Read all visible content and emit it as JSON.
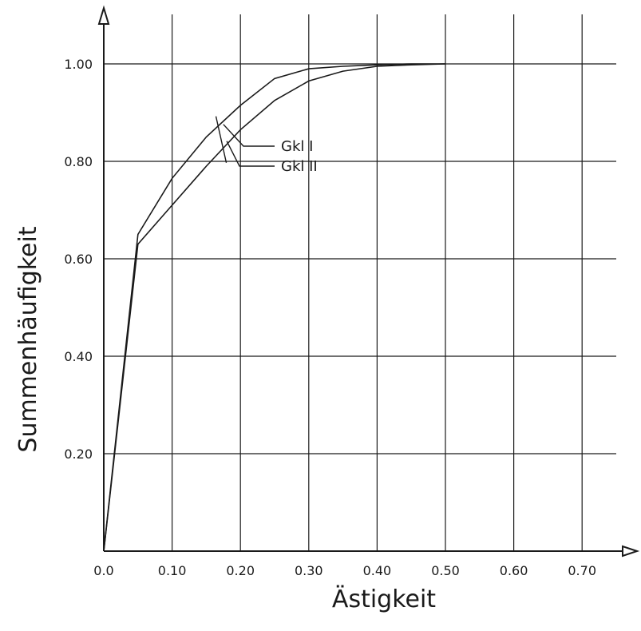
{
  "chart_data": {
    "type": "line",
    "title": "",
    "xlabel": "Ästigkeit",
    "ylabel": "Summenhäufigkeit",
    "xlim": [
      0,
      0.75
    ],
    "ylim": [
      0,
      1.0
    ],
    "grid": true,
    "x_ticks": [
      "0.0",
      "0.10",
      "0.20",
      "0.30",
      "0.40",
      "0.50",
      "0.60",
      "0.70"
    ],
    "y_ticks": [
      "0.20",
      "0.40",
      "0.60",
      "0.80",
      "1.00"
    ],
    "series": [
      {
        "name": "Gkl I",
        "x": [
          0.0,
          0.05,
          0.1,
          0.15,
          0.2,
          0.25,
          0.3,
          0.35,
          0.4,
          0.45,
          0.5
        ],
        "y": [
          0.0,
          0.65,
          0.765,
          0.85,
          0.915,
          0.97,
          0.99,
          0.995,
          0.998,
          1.0,
          1.0
        ]
      },
      {
        "name": "Gkl II",
        "x": [
          0.0,
          0.05,
          0.1,
          0.15,
          0.2,
          0.25,
          0.3,
          0.35,
          0.4,
          0.45,
          0.5
        ],
        "y": [
          0.0,
          0.63,
          0.71,
          0.79,
          0.865,
          0.925,
          0.965,
          0.985,
          0.995,
          0.998,
          1.0
        ]
      }
    ]
  }
}
